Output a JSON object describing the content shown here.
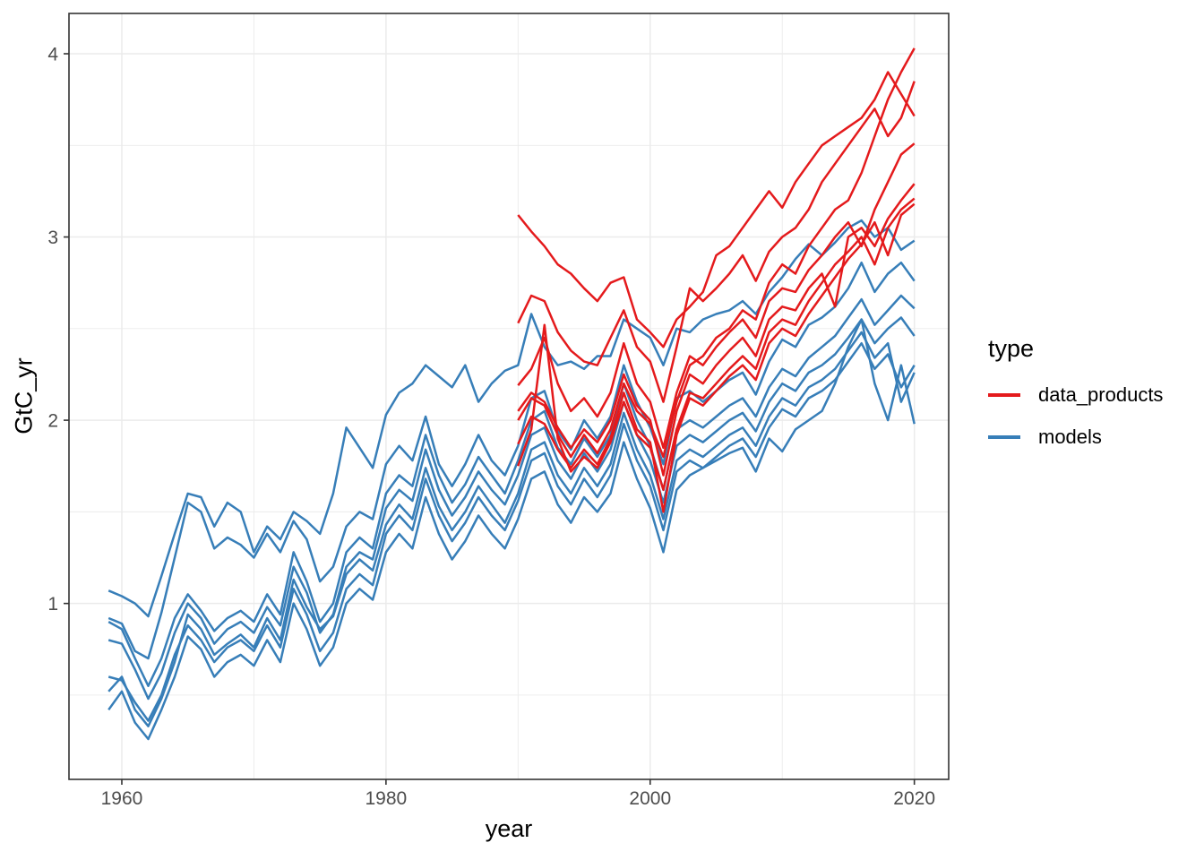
{
  "chart_data": {
    "type": "line",
    "xlabel": "year",
    "ylabel": "GtC_yr",
    "panel_background": "#ffffff",
    "grid_color": "#ebebeb",
    "border_color": "#333333",
    "tick_label_color": "#4d4d4d",
    "x_axis": {
      "range": [
        1956.0,
        2022.6
      ],
      "ticks": [
        1960,
        1980,
        2000,
        2020
      ],
      "tick_labels": [
        "1960",
        "1980",
        "2000",
        "2020"
      ],
      "minor_ticks": [
        1970,
        1990,
        2010
      ]
    },
    "y_axis": {
      "range": [
        0.04,
        4.22
      ],
      "ticks": [
        1,
        2,
        3,
        4
      ],
      "tick_labels": [
        "1",
        "2",
        "3",
        "4"
      ],
      "minor_ticks": [
        0.5,
        1.5,
        2.5,
        3.5
      ]
    },
    "grid": "major+minor",
    "legend": {
      "title": "type",
      "position": "right",
      "entries": [
        {
          "label": "data_products",
          "color": "#e41a1c"
        },
        {
          "label": "models",
          "color": "#377eb8"
        }
      ]
    },
    "series": [
      {
        "group": "models",
        "start_year": 1959,
        "values": [
          1.07,
          1.04,
          1.0,
          0.93,
          1.15,
          1.38,
          1.6,
          1.58,
          1.42,
          1.55,
          1.5,
          1.28,
          1.42,
          1.35,
          1.5,
          1.45,
          1.38,
          1.6,
          1.96,
          1.85,
          1.74,
          2.03,
          2.15,
          2.2,
          2.3,
          2.24,
          2.18,
          2.3,
          2.1,
          2.2,
          2.27,
          2.3,
          2.58,
          2.4,
          2.3,
          2.32,
          2.28,
          2.35,
          2.35,
          2.55,
          2.5,
          2.45,
          2.3,
          2.5,
          2.48,
          2.55,
          2.58,
          2.6,
          2.65,
          2.58,
          2.7,
          2.78,
          2.88,
          2.96,
          2.9,
          2.97,
          3.05,
          3.09,
          3.0,
          3.05,
          2.93,
          2.98
        ]
      },
      {
        "group": "models",
        "start_year": 1959,
        "values": [
          0.92,
          0.89,
          0.74,
          0.7,
          0.95,
          1.25,
          1.55,
          1.5,
          1.3,
          1.36,
          1.32,
          1.25,
          1.38,
          1.28,
          1.45,
          1.35,
          1.12,
          1.2,
          1.42,
          1.5,
          1.46,
          1.76,
          1.86,
          1.78,
          2.02,
          1.76,
          1.64,
          1.76,
          1.92,
          1.78,
          1.7,
          1.86,
          2.12,
          2.16,
          1.94,
          1.84,
          2.0,
          1.9,
          2.02,
          2.3,
          2.1,
          1.96,
          1.76,
          2.12,
          2.16,
          2.1,
          2.16,
          2.22,
          2.26,
          2.14,
          2.32,
          2.44,
          2.4,
          2.52,
          2.56,
          2.62,
          2.72,
          2.86,
          2.7,
          2.8,
          2.86,
          2.76
        ]
      },
      {
        "group": "models",
        "start_year": 1959,
        "values": [
          0.9,
          0.86,
          0.7,
          0.55,
          0.7,
          0.92,
          1.05,
          0.96,
          0.85,
          0.92,
          0.96,
          0.9,
          1.05,
          0.94,
          1.28,
          1.12,
          0.9,
          1.0,
          1.28,
          1.36,
          1.3,
          1.6,
          1.7,
          1.64,
          1.92,
          1.7,
          1.55,
          1.65,
          1.8,
          1.7,
          1.6,
          1.78,
          2.0,
          2.05,
          1.85,
          1.76,
          1.9,
          1.8,
          1.92,
          2.2,
          2.0,
          1.86,
          1.62,
          1.95,
          2.0,
          1.96,
          2.02,
          2.08,
          2.12,
          2.02,
          2.18,
          2.28,
          2.24,
          2.34,
          2.4,
          2.46,
          2.56,
          2.66,
          2.52,
          2.6,
          2.68,
          2.61
        ]
      },
      {
        "group": "models",
        "start_year": 1959,
        "values": [
          0.8,
          0.78,
          0.64,
          0.48,
          0.62,
          0.84,
          1.0,
          0.92,
          0.78,
          0.86,
          0.9,
          0.84,
          0.98,
          0.88,
          1.2,
          1.06,
          0.84,
          0.94,
          1.2,
          1.28,
          1.24,
          1.52,
          1.62,
          1.56,
          1.84,
          1.62,
          1.48,
          1.58,
          1.72,
          1.62,
          1.54,
          1.7,
          1.92,
          1.96,
          1.78,
          1.68,
          1.82,
          1.72,
          1.84,
          2.1,
          1.92,
          1.78,
          1.55,
          1.86,
          1.92,
          1.88,
          1.94,
          2.0,
          2.04,
          1.94,
          2.1,
          2.2,
          2.16,
          2.26,
          2.3,
          2.36,
          2.45,
          2.55,
          2.42,
          2.5,
          2.56,
          2.46
        ]
      },
      {
        "group": "models",
        "start_year": 1959,
        "values": [
          0.6,
          0.58,
          0.46,
          0.36,
          0.5,
          0.72,
          0.88,
          0.8,
          0.68,
          0.76,
          0.8,
          0.74,
          0.88,
          0.76,
          1.08,
          0.94,
          0.74,
          0.84,
          1.08,
          1.16,
          1.1,
          1.38,
          1.48,
          1.4,
          1.68,
          1.48,
          1.34,
          1.44,
          1.58,
          1.48,
          1.4,
          1.56,
          1.78,
          1.82,
          1.64,
          1.54,
          1.68,
          1.58,
          1.7,
          1.98,
          1.78,
          1.64,
          1.4,
          1.72,
          1.78,
          1.74,
          1.8,
          1.86,
          1.9,
          1.8,
          1.96,
          2.06,
          2.02,
          2.12,
          2.16,
          2.22,
          2.32,
          2.42,
          2.28,
          2.36,
          2.18,
          2.3
        ]
      },
      {
        "group": "models",
        "start_year": 1959,
        "values": [
          0.52,
          0.6,
          0.42,
          0.33,
          0.48,
          0.68,
          0.94,
          0.86,
          0.72,
          0.78,
          0.83,
          0.76,
          0.92,
          0.8,
          1.13,
          0.98,
          0.86,
          0.93,
          1.16,
          1.24,
          1.18,
          1.43,
          1.54,
          1.46,
          1.74,
          1.53,
          1.4,
          1.5,
          1.64,
          1.54,
          1.44,
          1.6,
          1.84,
          1.88,
          1.7,
          1.6,
          1.74,
          1.64,
          1.76,
          2.04,
          1.84,
          1.7,
          1.46,
          1.78,
          1.84,
          1.8,
          1.86,
          1.92,
          1.96,
          1.86,
          2.02,
          2.12,
          2.08,
          2.18,
          2.22,
          2.28,
          2.38,
          2.48,
          2.34,
          2.42,
          2.1,
          2.26
        ]
      },
      {
        "group": "models",
        "start_year": 1959,
        "values": [
          0.42,
          0.52,
          0.35,
          0.26,
          0.42,
          0.6,
          0.82,
          0.75,
          0.6,
          0.68,
          0.72,
          0.66,
          0.8,
          0.68,
          1.0,
          0.86,
          0.66,
          0.76,
          1.0,
          1.08,
          1.02,
          1.28,
          1.38,
          1.3,
          1.58,
          1.38,
          1.24,
          1.34,
          1.48,
          1.38,
          1.3,
          1.46,
          1.68,
          1.72,
          1.54,
          1.44,
          1.58,
          1.5,
          1.6,
          1.88,
          1.68,
          1.52,
          1.28,
          1.62,
          1.7,
          1.74,
          1.78,
          1.82,
          1.85,
          1.72,
          1.9,
          1.83,
          1.95,
          2.0,
          2.05,
          2.2,
          2.4,
          2.55,
          2.2,
          2.0,
          2.3,
          1.98
        ]
      },
      {
        "group": "data_products",
        "start_year": 1990,
        "values": [
          3.12,
          3.03,
          2.95,
          2.85,
          2.8,
          2.72,
          2.65,
          2.75,
          2.78,
          2.55,
          2.48,
          2.4,
          2.55,
          2.62,
          2.7,
          2.9,
          2.95,
          3.05,
          3.15,
          3.25,
          3.16,
          3.3,
          3.4,
          3.5,
          3.55,
          3.6,
          3.65,
          3.75,
          3.9,
          3.78,
          3.66
        ]
      },
      {
        "group": "data_products",
        "start_year": 1990,
        "values": [
          2.0,
          2.12,
          2.08,
          1.92,
          1.8,
          1.92,
          1.82,
          1.95,
          2.2,
          2.05,
          1.98,
          1.8,
          2.1,
          2.3,
          2.35,
          2.45,
          2.5,
          2.6,
          2.55,
          2.75,
          2.85,
          2.8,
          2.95,
          3.05,
          3.15,
          3.2,
          3.35,
          3.55,
          3.75,
          3.9,
          4.03
        ]
      },
      {
        "group": "data_products",
        "start_year": 1990,
        "values": [
          2.53,
          2.68,
          2.65,
          2.48,
          2.38,
          2.32,
          2.3,
          2.45,
          2.6,
          2.4,
          2.32,
          2.1,
          2.4,
          2.72,
          2.65,
          2.72,
          2.8,
          2.9,
          2.76,
          2.92,
          3.0,
          3.05,
          3.15,
          3.3,
          3.4,
          3.5,
          3.6,
          3.7,
          3.55,
          3.65,
          3.85
        ]
      },
      {
        "group": "data_products",
        "start_year": 1990,
        "values": [
          2.19,
          2.28,
          2.45,
          2.2,
          2.05,
          2.12,
          2.02,
          2.15,
          2.42,
          2.2,
          2.1,
          1.85,
          2.15,
          2.35,
          2.3,
          2.4,
          2.48,
          2.55,
          2.45,
          2.65,
          2.72,
          2.7,
          2.82,
          2.9,
          3.0,
          3.08,
          2.95,
          3.15,
          3.3,
          3.45,
          3.51
        ]
      },
      {
        "group": "data_products",
        "start_year": 1990,
        "values": [
          2.05,
          2.15,
          2.1,
          1.96,
          1.85,
          1.95,
          1.88,
          2.0,
          2.25,
          2.08,
          2.0,
          1.7,
          2.05,
          2.25,
          2.2,
          2.3,
          2.38,
          2.45,
          2.35,
          2.55,
          2.62,
          2.6,
          2.72,
          2.8,
          2.62,
          3.0,
          3.05,
          2.95,
          3.1,
          3.2,
          3.29
        ]
      },
      {
        "group": "data_products",
        "start_year": 1990,
        "values": [
          1.75,
          1.95,
          2.52,
          1.9,
          1.72,
          1.8,
          1.74,
          1.88,
          2.1,
          1.92,
          1.85,
          1.62,
          1.95,
          2.15,
          2.12,
          2.2,
          2.28,
          2.35,
          2.28,
          2.48,
          2.55,
          2.52,
          2.65,
          2.75,
          2.85,
          2.92,
          3.0,
          2.85,
          3.05,
          3.15,
          3.21
        ]
      },
      {
        "group": "data_products",
        "start_year": 1990,
        "values": [
          1.87,
          2.02,
          1.98,
          1.84,
          1.74,
          1.84,
          1.76,
          1.9,
          2.15,
          1.95,
          1.88,
          1.5,
          1.92,
          2.12,
          2.08,
          2.16,
          2.24,
          2.3,
          2.22,
          2.42,
          2.5,
          2.46,
          2.58,
          2.68,
          2.78,
          2.88,
          2.96,
          3.08,
          2.9,
          3.12,
          3.18
        ]
      }
    ]
  }
}
